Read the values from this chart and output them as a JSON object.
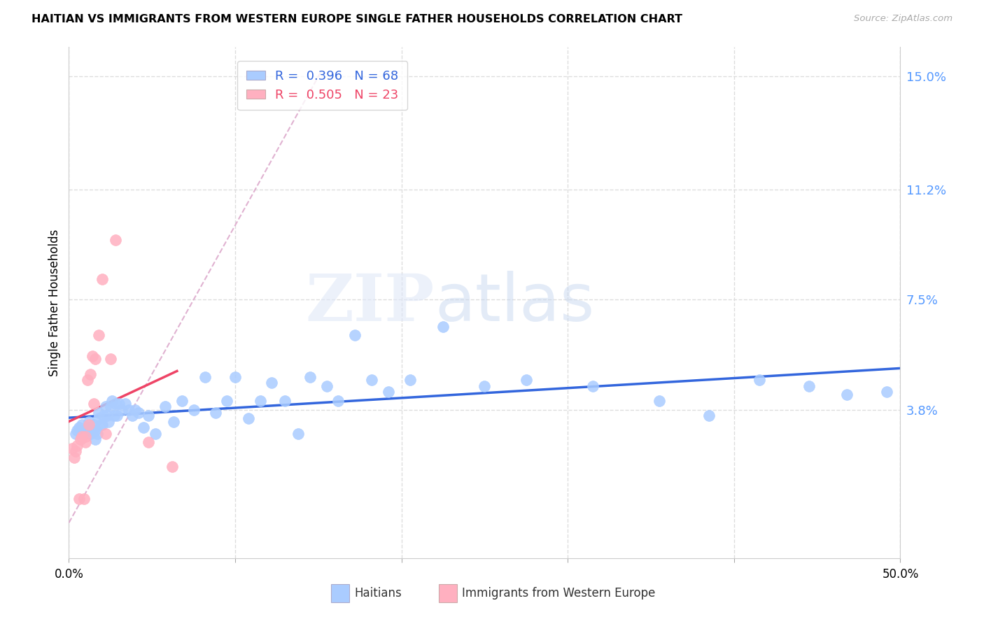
{
  "title": "HAITIAN VS IMMIGRANTS FROM WESTERN EUROPE SINGLE FATHER HOUSEHOLDS CORRELATION CHART",
  "source": "Source: ZipAtlas.com",
  "ylabel": "Single Father Households",
  "xlim": [
    0.0,
    0.5
  ],
  "ylim": [
    -0.012,
    0.16
  ],
  "right_yticks": [
    0.038,
    0.075,
    0.112,
    0.15
  ],
  "right_yticklabels": [
    "3.8%",
    "7.5%",
    "11.2%",
    "15.0%"
  ],
  "xticks": [
    0.0,
    0.1,
    0.2,
    0.3,
    0.4,
    0.5
  ],
  "xticklabels": [
    "0.0%",
    "",
    "",
    "",
    "",
    "50.0%"
  ],
  "blue_color": "#AACCFF",
  "pink_color": "#FFB0C0",
  "trend_blue": "#3366DD",
  "trend_pink": "#EE4466",
  "diag_color": "#DDAACC",
  "grid_color": "#DDDDDD",
  "blue_scatter_x": [
    0.004,
    0.005,
    0.006,
    0.007,
    0.008,
    0.009,
    0.01,
    0.011,
    0.012,
    0.013,
    0.014,
    0.015,
    0.016,
    0.016,
    0.017,
    0.018,
    0.018,
    0.019,
    0.02,
    0.021,
    0.022,
    0.023,
    0.024,
    0.025,
    0.026,
    0.027,
    0.028,
    0.029,
    0.03,
    0.032,
    0.034,
    0.036,
    0.038,
    0.04,
    0.042,
    0.045,
    0.048,
    0.052,
    0.058,
    0.063,
    0.068,
    0.075,
    0.082,
    0.088,
    0.095,
    0.1,
    0.108,
    0.115,
    0.122,
    0.13,
    0.138,
    0.145,
    0.155,
    0.162,
    0.172,
    0.182,
    0.192,
    0.205,
    0.225,
    0.25,
    0.275,
    0.315,
    0.355,
    0.385,
    0.415,
    0.445,
    0.468,
    0.492
  ],
  "blue_scatter_y": [
    0.03,
    0.031,
    0.032,
    0.031,
    0.033,
    0.03,
    0.031,
    0.032,
    0.034,
    0.03,
    0.031,
    0.033,
    0.028,
    0.031,
    0.03,
    0.035,
    0.037,
    0.033,
    0.033,
    0.036,
    0.039,
    0.036,
    0.034,
    0.039,
    0.041,
    0.036,
    0.04,
    0.036,
    0.04,
    0.038,
    0.04,
    0.038,
    0.036,
    0.038,
    0.037,
    0.032,
    0.036,
    0.03,
    0.039,
    0.034,
    0.041,
    0.038,
    0.049,
    0.037,
    0.041,
    0.049,
    0.035,
    0.041,
    0.047,
    0.041,
    0.03,
    0.049,
    0.046,
    0.041,
    0.063,
    0.048,
    0.044,
    0.048,
    0.066,
    0.046,
    0.048,
    0.046,
    0.041,
    0.036,
    0.048,
    0.046,
    0.043,
    0.044
  ],
  "pink_scatter_x": [
    0.002,
    0.003,
    0.004,
    0.005,
    0.006,
    0.007,
    0.008,
    0.009,
    0.01,
    0.01,
    0.011,
    0.012,
    0.013,
    0.014,
    0.015,
    0.016,
    0.018,
    0.02,
    0.022,
    0.025,
    0.028,
    0.048,
    0.062
  ],
  "pink_scatter_y": [
    0.025,
    0.022,
    0.024,
    0.026,
    0.008,
    0.028,
    0.029,
    0.008,
    0.027,
    0.029,
    0.048,
    0.033,
    0.05,
    0.056,
    0.04,
    0.055,
    0.063,
    0.082,
    0.03,
    0.055,
    0.095,
    0.027,
    0.019
  ]
}
